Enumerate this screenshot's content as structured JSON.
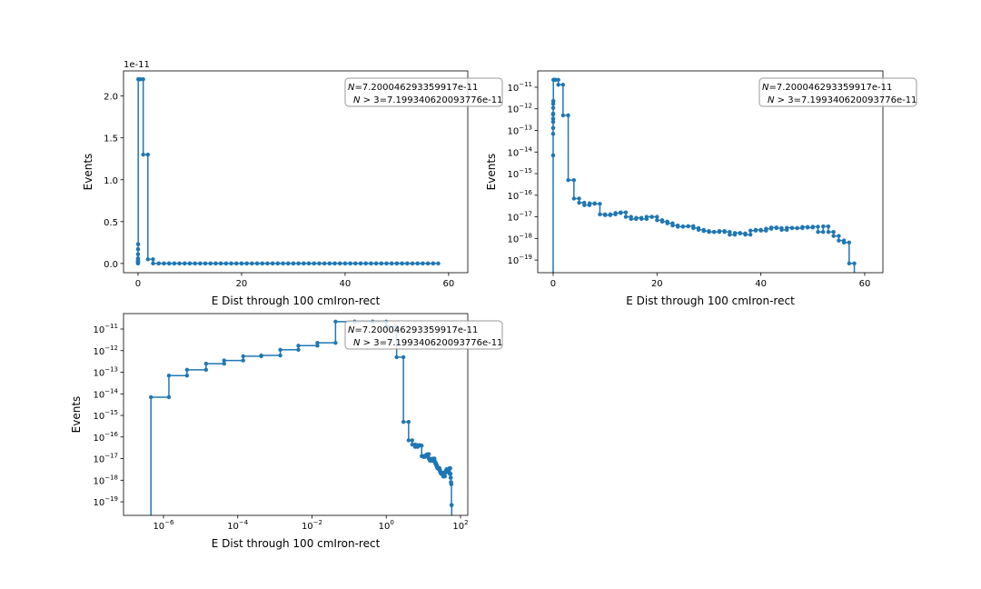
{
  "chart_data": [
    {
      "type": "histogram",
      "color": "#1f77b4",
      "xscale": "linear",
      "yscale": "linear",
      "xlabel": "E Dist through 100 cmIron-rect",
      "ylabel": "Events",
      "y_offset_text": "1e-11",
      "annotations": [
        "N=7.200046293359917e-11",
        "N > 3=7.199340620093776e-11"
      ],
      "xlim": [
        -2.8,
        63.7
      ],
      "xticks": [
        0,
        20,
        40,
        60
      ],
      "ylim": [
        -1.1e-12,
        2.3e-11
      ],
      "yticks": [
        {
          "value": 0,
          "label": "0.0"
        },
        {
          "value": 5e-12,
          "label": "0.5"
        },
        {
          "value": 1e-11,
          "label": "1.0"
        },
        {
          "value": 1.5e-11,
          "label": "1.5"
        },
        {
          "value": 2e-11,
          "label": "2.0"
        }
      ],
      "bins": [
        4.6e-07,
        1.4e-06,
        4.3e-06,
        1.4e-05,
        4.3e-05,
        0.00014,
        0.00043,
        0.0014,
        0.0043,
        0.014,
        0.043,
        0.14,
        0.43,
        1.0,
        1.9,
        2.9,
        4,
        5,
        6,
        7,
        8,
        9,
        10,
        11,
        12,
        13,
        14,
        15,
        16,
        17,
        18,
        19,
        20,
        21,
        22,
        23,
        24,
        25,
        26,
        27,
        28,
        29,
        30,
        31,
        32,
        33,
        34,
        35,
        36,
        37,
        38,
        39,
        40,
        41,
        42,
        43,
        44,
        45,
        46,
        47,
        48,
        49,
        50,
        51,
        52,
        53,
        54,
        55,
        56,
        57,
        58
      ],
      "values": [
        7e-15,
        7e-14,
        1.3e-13,
        2.5e-13,
        3.5e-13,
        5.5e-13,
        6e-13,
        1.1e-12,
        1.7e-12,
        2.3e-12,
        2.2e-11,
        2.2e-11,
        2.2e-11,
        1.3e-11,
        5e-13,
        5e-16,
        7e-17,
        4.5e-17,
        3.5e-17,
        4.2e-17,
        4e-17,
        1.3e-17,
        1.2e-17,
        1.3e-17,
        1.5e-17,
        1.6e-17,
        1e-17,
        8e-18,
        9e-18,
        8e-18,
        1e-17,
        1e-17,
        7e-18,
        6e-18,
        5e-18,
        4e-18,
        3.5e-18,
        3.6e-18,
        3.7e-18,
        3e-18,
        2.5e-18,
        2.2e-18,
        2e-18,
        2e-18,
        2.2e-18,
        2e-18,
        1.5e-18,
        1.8e-18,
        1.7e-18,
        1.5e-18,
        2.3e-18,
        2.5e-18,
        2.3e-18,
        2.8e-18,
        3.2e-18,
        3e-18,
        2.5e-18,
        3.1e-18,
        3e-18,
        3e-18,
        3.4e-18,
        3.2e-18,
        3.5e-18,
        2e-18,
        3.6e-18,
        2e-18,
        1.3e-18,
        8e-19,
        6.5e-19,
        7e-20
      ]
    },
    {
      "type": "histogram",
      "color": "#1f77b4",
      "xscale": "linear",
      "yscale": "log",
      "xlabel": "E Dist through 100 cmIron-rect",
      "ylabel": "Events",
      "annotations": [
        "N=7.200046293359917e-11",
        "N > 3=7.199340620093776e-11"
      ],
      "xlim": [
        -2.97,
        63.5
      ],
      "xticks": [
        0,
        20,
        40,
        60
      ],
      "ylim": [
        2.6e-20,
        5.7e-11
      ],
      "yticks": [
        {
          "value": 1e-19,
          "label": "10−19"
        },
        {
          "value": 1e-18,
          "label": "10−18"
        },
        {
          "value": 1e-17,
          "label": "10−17"
        },
        {
          "value": 1e-16,
          "label": "10−16"
        },
        {
          "value": 1e-15,
          "label": "10−15"
        },
        {
          "value": 1e-14,
          "label": "10−14"
        },
        {
          "value": 1e-13,
          "label": "10−13"
        },
        {
          "value": 1e-12,
          "label": "10−12"
        },
        {
          "value": 1e-11,
          "label": "10−11"
        }
      ],
      "bins": [
        4.6e-07,
        1.4e-06,
        4.3e-06,
        1.4e-05,
        4.3e-05,
        0.00014,
        0.00043,
        0.0014,
        0.0043,
        0.014,
        0.043,
        0.14,
        0.43,
        1.0,
        1.9,
        2.9,
        4,
        5,
        6,
        7,
        8,
        9,
        10,
        11,
        12,
        13,
        14,
        15,
        16,
        17,
        18,
        19,
        20,
        21,
        22,
        23,
        24,
        25,
        26,
        27,
        28,
        29,
        30,
        31,
        32,
        33,
        34,
        35,
        36,
        37,
        38,
        39,
        40,
        41,
        42,
        43,
        44,
        45,
        46,
        47,
        48,
        49,
        50,
        51,
        52,
        53,
        54,
        55,
        56,
        57,
        58
      ],
      "values": [
        7e-15,
        7e-14,
        1.3e-13,
        2.5e-13,
        3.5e-13,
        5.5e-13,
        6e-13,
        1.1e-12,
        1.7e-12,
        2.3e-12,
        2.2e-11,
        2.2e-11,
        2.2e-11,
        1.3e-11,
        5e-13,
        5e-16,
        7e-17,
        4.5e-17,
        3.5e-17,
        4.2e-17,
        4e-17,
        1.3e-17,
        1.2e-17,
        1.3e-17,
        1.5e-17,
        1.6e-17,
        1e-17,
        8e-18,
        9e-18,
        8e-18,
        1e-17,
        1e-17,
        7e-18,
        6e-18,
        5e-18,
        4e-18,
        3.5e-18,
        3.6e-18,
        3.7e-18,
        3e-18,
        2.5e-18,
        2.2e-18,
        2e-18,
        2e-18,
        2.2e-18,
        2e-18,
        1.5e-18,
        1.8e-18,
        1.7e-18,
        1.5e-18,
        2.3e-18,
        2.5e-18,
        2.3e-18,
        2.8e-18,
        3.2e-18,
        3e-18,
        2.5e-18,
        3.1e-18,
        3e-18,
        3e-18,
        3.4e-18,
        3.2e-18,
        3.5e-18,
        2e-18,
        3.6e-18,
        2e-18,
        1.3e-18,
        8e-19,
        6.5e-19,
        7e-20
      ]
    },
    {
      "type": "histogram",
      "color": "#1f77b4",
      "xscale": "log",
      "yscale": "log",
      "xlabel": "E Dist through 100 cmIron-rect",
      "ylabel": "Events",
      "annotations": [
        "N=7.200046293359917e-11",
        "N > 3=7.199340620093776e-11"
      ],
      "xlim": [
        8.4e-08,
        157
      ],
      "xticks": [
        {
          "value": 1e-06,
          "label": "10−6"
        },
        {
          "value": 0.0001,
          "label": "10−4"
        },
        {
          "value": 0.01,
          "label": "10−2"
        },
        {
          "value": 1,
          "label": "100"
        },
        {
          "value": 100,
          "label": "102"
        }
      ],
      "ylim": [
        2.35e-20,
        5.2e-11
      ],
      "yticks": [
        {
          "value": 1e-19,
          "label": "10−19"
        },
        {
          "value": 1e-18,
          "label": "10−18"
        },
        {
          "value": 1e-17,
          "label": "10−17"
        },
        {
          "value": 1e-16,
          "label": "10−16"
        },
        {
          "value": 1e-15,
          "label": "10−15"
        },
        {
          "value": 1e-14,
          "label": "10−14"
        },
        {
          "value": 1e-13,
          "label": "10−13"
        },
        {
          "value": 1e-12,
          "label": "10−12"
        },
        {
          "value": 1e-11,
          "label": "10−11"
        }
      ],
      "bins": [
        4.6e-07,
        1.4e-06,
        4.3e-06,
        1.4e-05,
        4.3e-05,
        0.00014,
        0.00043,
        0.0014,
        0.0043,
        0.014,
        0.043,
        0.14,
        0.43,
        1.0,
        1.9,
        2.9,
        4,
        5,
        6,
        7,
        8,
        9,
        10,
        11,
        12,
        13,
        14,
        15,
        16,
        17,
        18,
        19,
        20,
        21,
        22,
        23,
        24,
        25,
        26,
        27,
        28,
        29,
        30,
        31,
        32,
        33,
        34,
        35,
        36,
        37,
        38,
        39,
        40,
        41,
        42,
        43,
        44,
        45,
        46,
        47,
        48,
        49,
        50,
        51,
        52,
        53,
        54,
        55,
        56,
        57,
        58
      ],
      "values": [
        7e-15,
        7e-14,
        1.3e-13,
        2.5e-13,
        3.5e-13,
        5.5e-13,
        6e-13,
        1.1e-12,
        1.7e-12,
        2.3e-12,
        2.2e-11,
        2.2e-11,
        2.2e-11,
        1.3e-11,
        5e-13,
        5e-16,
        7e-17,
        4.5e-17,
        3.5e-17,
        4.2e-17,
        4e-17,
        1.3e-17,
        1.2e-17,
        1.3e-17,
        1.5e-17,
        1.6e-17,
        1e-17,
        8e-18,
        9e-18,
        8e-18,
        1e-17,
        1e-17,
        7e-18,
        6e-18,
        5e-18,
        4e-18,
        3.5e-18,
        3.6e-18,
        3.7e-18,
        3e-18,
        2.5e-18,
        2.2e-18,
        2e-18,
        2e-18,
        2.2e-18,
        2e-18,
        1.5e-18,
        1.8e-18,
        1.7e-18,
        1.5e-18,
        2.3e-18,
        2.5e-18,
        2.3e-18,
        2.8e-18,
        3.2e-18,
        3e-18,
        2.5e-18,
        3.1e-18,
        3e-18,
        3e-18,
        3.4e-18,
        3.2e-18,
        3.5e-18,
        2e-18,
        3.6e-18,
        2e-18,
        1.3e-18,
        8e-19,
        6.5e-19,
        7e-20
      ]
    }
  ]
}
